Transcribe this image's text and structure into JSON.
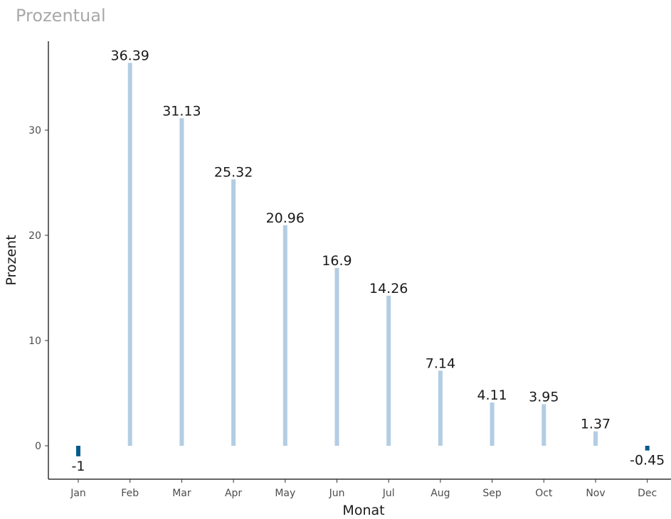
{
  "title": "Prozentual",
  "chart_data": {
    "type": "bar",
    "categories": [
      "Jan",
      "Feb",
      "Mar",
      "Apr",
      "May",
      "Jun",
      "Jul",
      "Aug",
      "Sep",
      "Oct",
      "Nov",
      "Dec"
    ],
    "values": [
      -1,
      36.39,
      31.13,
      25.32,
      20.96,
      16.9,
      14.26,
      7.14,
      4.11,
      3.95,
      1.37,
      -0.45
    ],
    "data_labels": [
      "-1",
      "36.39",
      "31.13",
      "25.32",
      "20.96",
      "16.9",
      "14.26",
      "7.14",
      "4.11",
      "3.95",
      "1.37",
      "-0.45"
    ],
    "xlabel": "Monat",
    "ylabel": "Prozent",
    "ylim": [
      -3.2,
      38
    ],
    "yticks": [
      0,
      10,
      20,
      30
    ],
    "grid": false,
    "legend": "none",
    "colors": {
      "bar": "#b3cde3",
      "highlight": "#045a8d",
      "axis": "#333333"
    }
  }
}
